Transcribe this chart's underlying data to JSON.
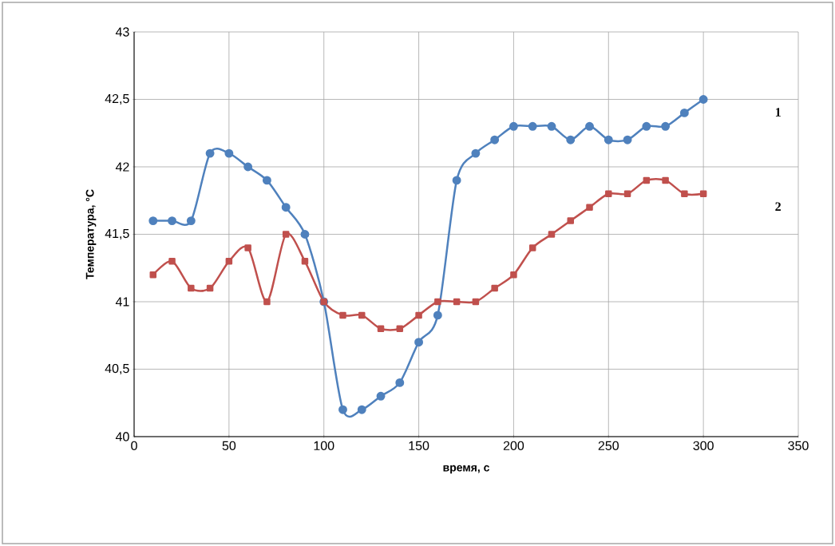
{
  "chart_data": {
    "type": "line",
    "xlabel": "время, с",
    "ylabel": "Температура, °C",
    "x": [
      10,
      20,
      30,
      40,
      50,
      60,
      70,
      80,
      90,
      100,
      110,
      120,
      130,
      140,
      150,
      160,
      170,
      180,
      190,
      200,
      210,
      220,
      230,
      240,
      250,
      260,
      270,
      280,
      290,
      300
    ],
    "series": [
      {
        "name": "1",
        "color": "#4f81bd",
        "marker": "circle",
        "values": [
          41.6,
          41.6,
          41.6,
          42.1,
          42.1,
          42.0,
          41.9,
          41.7,
          41.5,
          41.0,
          40.2,
          40.2,
          40.3,
          40.4,
          40.7,
          40.9,
          41.9,
          42.1,
          42.2,
          42.3,
          42.3,
          42.3,
          42.2,
          42.3,
          42.2,
          42.2,
          42.3,
          42.3,
          42.4,
          42.5
        ]
      },
      {
        "name": "2",
        "color": "#c0504d",
        "marker": "square",
        "values": [
          41.2,
          41.3,
          41.1,
          41.1,
          41.3,
          41.4,
          41.0,
          41.5,
          41.3,
          41.0,
          40.9,
          40.9,
          40.8,
          40.8,
          40.9,
          41.0,
          41.0,
          41.0,
          41.1,
          41.2,
          41.4,
          41.5,
          41.6,
          41.7,
          41.8,
          41.8,
          41.9,
          41.9,
          41.8,
          41.8
        ]
      }
    ],
    "xlim": [
      0,
      350
    ],
    "xticks": [
      0,
      50,
      100,
      150,
      200,
      250,
      300,
      350
    ],
    "ylim": [
      40,
      43
    ],
    "yticks": [
      40,
      {
        "value": 40.5,
        "label": "40,5"
      },
      41,
      {
        "value": 41.5,
        "label": "41,5"
      },
      42,
      {
        "value": 42.5,
        "label": "42,5"
      },
      43
    ],
    "grid": true,
    "line_style": "solid"
  }
}
